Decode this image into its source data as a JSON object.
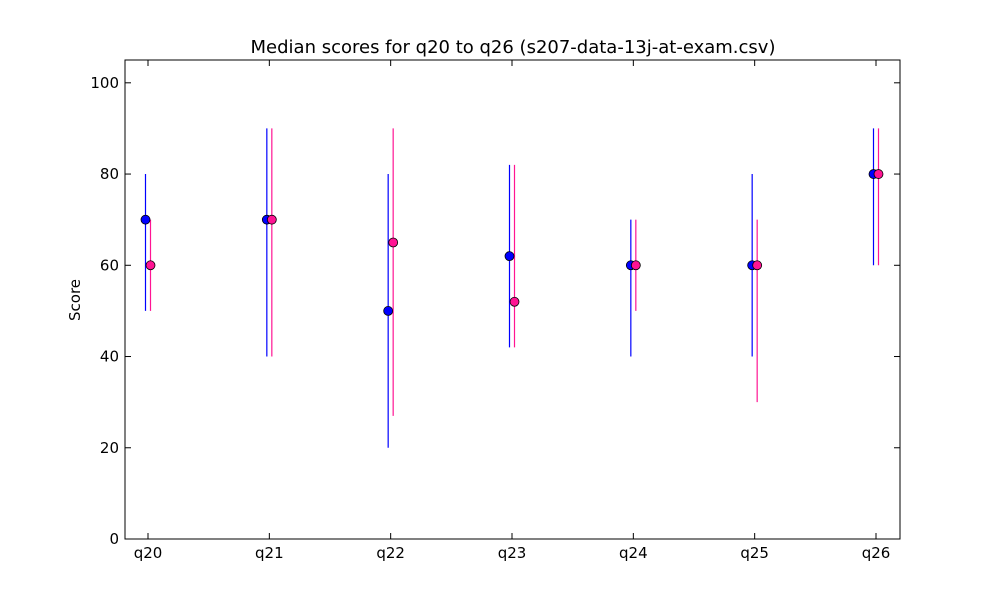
{
  "chart_data": {
    "type": "scatter",
    "title": "Median scores for q20 to q26 (s207-data-13j-at-exam.csv)",
    "xlabel": "",
    "ylabel": "Score",
    "categories": [
      "q20",
      "q21",
      "q22",
      "q23",
      "q24",
      "q25",
      "q26"
    ],
    "ylim": [
      0,
      105
    ],
    "yticks": [
      0,
      20,
      40,
      60,
      80,
      100
    ],
    "grid": false,
    "series": [
      {
        "color": "#0000ff",
        "median": [
          70,
          70,
          50,
          62,
          60,
          60,
          80
        ],
        "low": [
          50,
          40,
          20,
          42,
          40,
          40,
          60
        ],
        "high": [
          80,
          90,
          80,
          82,
          70,
          80,
          90
        ]
      },
      {
        "color": "#ff1493",
        "median": [
          60,
          70,
          65,
          52,
          60,
          60,
          80
        ],
        "low": [
          50,
          40,
          27,
          42,
          50,
          30,
          60
        ],
        "high": [
          70,
          90,
          90,
          82,
          70,
          70,
          90
        ]
      }
    ]
  }
}
